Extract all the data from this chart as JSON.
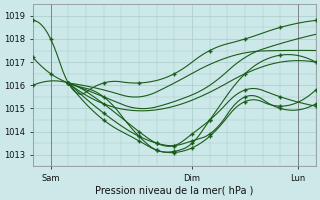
{
  "title": "Pression niveau de la mer( hPa )",
  "background_color": "#cce8e8",
  "grid_color": "#aacccc",
  "line_color": "#1a5c1a",
  "ylim": [
    1012.5,
    1019.5
  ],
  "yticks": [
    1013,
    1014,
    1015,
    1016,
    1017,
    1018,
    1019
  ],
  "xlim": [
    0,
    48
  ],
  "sam_x": 3,
  "dim_x": 27,
  "lun_x": 45,
  "convergence_x": 6,
  "convergence_y": 1016.1,
  "series": [
    {
      "points": [
        [
          0,
          1018.8
        ],
        [
          3,
          1018.0
        ],
        [
          6,
          1016.1
        ],
        [
          12,
          1016.1
        ],
        [
          18,
          1016.1
        ],
        [
          24,
          1016.1
        ],
        [
          30,
          1017.0
        ],
        [
          36,
          1017.5
        ],
        [
          42,
          1018.3
        ],
        [
          48,
          1018.8
        ]
      ],
      "has_markers": true
    },
    {
      "points": [
        [
          0,
          1017.2
        ],
        [
          3,
          1016.3
        ],
        [
          6,
          1016.1
        ],
        [
          12,
          1015.5
        ],
        [
          18,
          1013.8
        ],
        [
          24,
          1013.1
        ],
        [
          30,
          1014.5
        ],
        [
          36,
          1016.5
        ],
        [
          42,
          1017.3
        ],
        [
          48,
          1017.0
        ]
      ],
      "has_markers": true
    },
    {
      "points": [
        [
          0,
          1016.0
        ],
        [
          6,
          1016.1
        ],
        [
          12,
          1015.2
        ],
        [
          18,
          1013.8
        ],
        [
          24,
          1013.3
        ],
        [
          30,
          1014.0
        ],
        [
          36,
          1016.0
        ],
        [
          42,
          1015.7
        ],
        [
          48,
          1015.1
        ]
      ],
      "has_markers": true
    },
    {
      "points": [
        [
          6,
          1016.1
        ],
        [
          12,
          1014.8
        ],
        [
          18,
          1013.7
        ],
        [
          24,
          1013.4
        ],
        [
          30,
          1013.8
        ],
        [
          36,
          1015.5
        ],
        [
          42,
          1015.0
        ],
        [
          48,
          1015.2
        ]
      ],
      "has_markers": true
    },
    {
      "points": [
        [
          6,
          1016.1
        ],
        [
          12,
          1014.4
        ],
        [
          18,
          1013.5
        ],
        [
          24,
          1013.2
        ],
        [
          30,
          1013.5
        ],
        [
          36,
          1015.3
        ],
        [
          42,
          1015.1
        ],
        [
          48,
          1015.8
        ]
      ],
      "has_markers": true
    },
    {
      "points": [
        [
          6,
          1016.1
        ],
        [
          18,
          1015.5
        ],
        [
          24,
          1016.1
        ],
        [
          30,
          1016.9
        ],
        [
          36,
          1017.5
        ],
        [
          42,
          1017.5
        ],
        [
          48,
          1017.5
        ]
      ],
      "has_markers": false
    },
    {
      "points": [
        [
          6,
          1016.1
        ],
        [
          18,
          1015.0
        ],
        [
          24,
          1015.3
        ],
        [
          30,
          1016.0
        ],
        [
          36,
          1017.2
        ],
        [
          42,
          1017.6
        ],
        [
          48,
          1018.2
        ]
      ],
      "has_markers": false
    },
    {
      "points": [
        [
          6,
          1016.1
        ],
        [
          18,
          1014.9
        ],
        [
          24,
          1015.1
        ],
        [
          30,
          1015.7
        ],
        [
          36,
          1016.4
        ],
        [
          42,
          1017.0
        ],
        [
          48,
          1017.0
        ]
      ],
      "has_markers": false
    }
  ]
}
